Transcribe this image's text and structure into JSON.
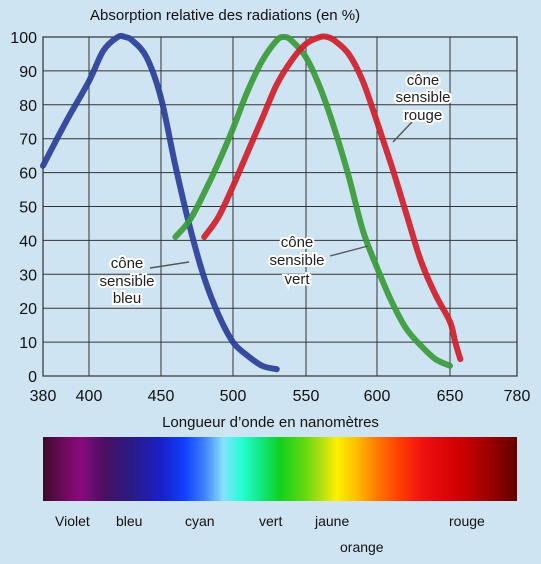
{
  "chart_data": {
    "type": "line",
    "title": "Absorption relative des radiations (en %)",
    "xlabel": "Longueur d’onde en nanomètres",
    "ylabel": "",
    "x_tick_values": [
      380,
      400,
      450,
      500,
      550,
      600,
      650,
      780
    ],
    "x_tick_labels": [
      "380",
      "400",
      "450",
      "500",
      "550",
      "600",
      "650",
      "780"
    ],
    "y_ticks": [
      0,
      10,
      20,
      30,
      40,
      50,
      60,
      70,
      80,
      90,
      100
    ],
    "ylim": [
      0,
      100
    ],
    "grid": true,
    "series": [
      {
        "name": "cône sensible bleu",
        "color": "#2a3f9a",
        "x": [
          380,
          390,
          400,
          410,
          420,
          425,
          430,
          440,
          450,
          460,
          470,
          480,
          490,
          500,
          510,
          520,
          530
        ],
        "y": [
          62,
          75,
          87,
          96,
          100,
          100,
          99,
          94,
          82,
          62,
          44,
          29,
          18,
          10,
          6,
          3,
          2
        ]
      },
      {
        "name": "cône sensible vert",
        "color": "#3a9a3a",
        "x": [
          460,
          470,
          480,
          490,
          500,
          510,
          520,
          530,
          535,
          540,
          550,
          560,
          570,
          580,
          590,
          600,
          610,
          620,
          630,
          640,
          650
        ],
        "y": [
          41,
          46,
          54,
          63,
          73,
          84,
          93,
          99,
          100,
          99,
          94,
          85,
          73,
          59,
          43,
          32,
          22,
          14,
          9,
          5,
          3
        ]
      },
      {
        "name": "cône sensible rouge",
        "color": "#d01e2a",
        "x": [
          480,
          490,
          500,
          510,
          520,
          530,
          540,
          550,
          560,
          565,
          570,
          580,
          590,
          600,
          610,
          620,
          630,
          640,
          650,
          660,
          670
        ],
        "y": [
          41,
          47,
          56,
          66,
          76,
          86,
          93,
          98,
          100,
          100,
          99,
          95,
          87,
          75,
          62,
          48,
          34,
          24,
          16,
          10,
          5
        ]
      }
    ],
    "annotations": [
      {
        "lines": [
          "cône",
          "sensible",
          "bleu"
        ]
      },
      {
        "lines": [
          "cône",
          "sensible",
          "vert"
        ]
      },
      {
        "lines": [
          "cône",
          "sensible",
          "rouge"
        ]
      }
    ],
    "spectrum_labels": [
      "Violet",
      "bleu",
      "cyan",
      "vert",
      "jaune",
      "orange",
      "rouge"
    ]
  }
}
